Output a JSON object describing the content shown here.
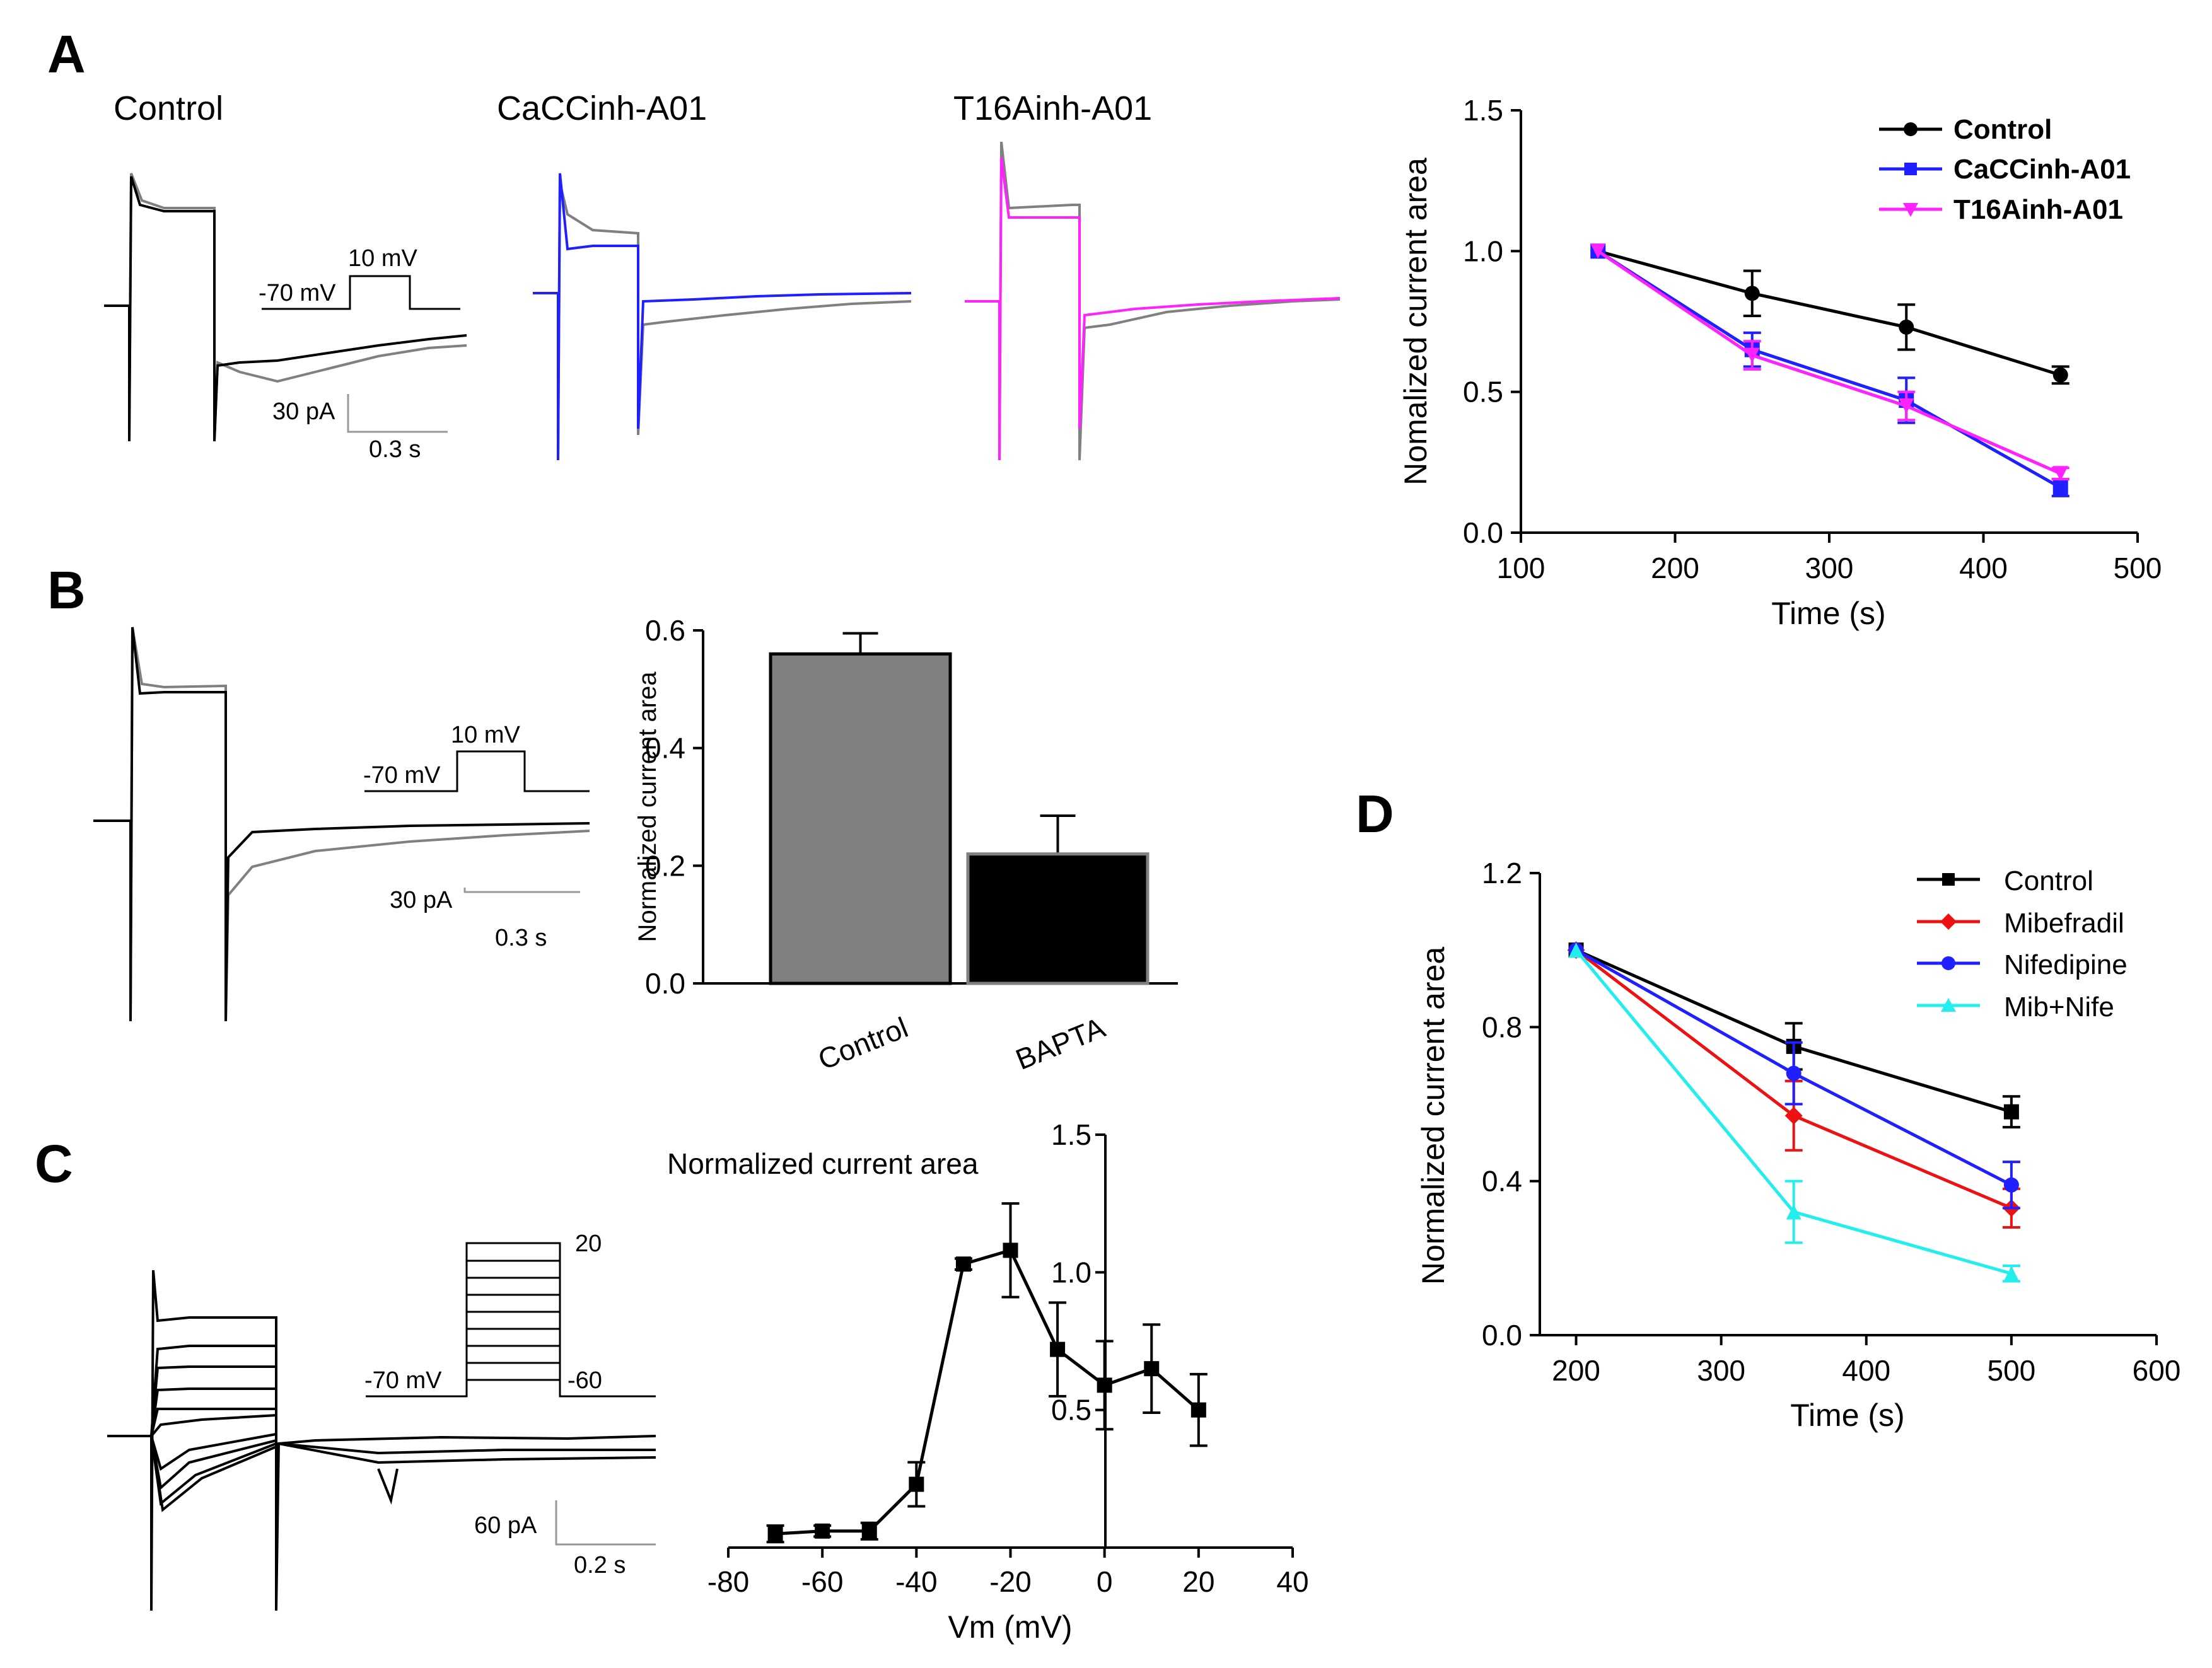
{
  "panel_letters": {
    "a": "A",
    "b": "B",
    "c": "C",
    "d": "D"
  },
  "panel_a": {
    "trace_titles": {
      "control": "Control",
      "cacc": "CaCCinh-A01",
      "t16a": "T16Ainh-A01"
    },
    "protocol": {
      "hold": "-70 mV",
      "step": "10 mV"
    },
    "scale": {
      "current": "30 pA",
      "time": "0.3 s"
    }
  },
  "panel_b": {
    "protocol": {
      "hold": "-70 mV",
      "step": "10 mV"
    },
    "scale": {
      "current": "30 pA",
      "time": "0.3 s"
    }
  },
  "panel_c": {
    "protocol": {
      "hold": "-70 mV",
      "top": "20",
      "bottom": "-60"
    },
    "scale": {
      "current": "60 pA",
      "time": "0.2 s"
    }
  },
  "colors": {
    "control": "#000000",
    "gray": "#808080",
    "blue": "#1f1fff",
    "magenta": "#ff22ff",
    "red": "#ee1111",
    "cyan": "#22eeee",
    "bar_control": "#808080",
    "bar_bapta": "#000000"
  },
  "chart_data": [
    {
      "id": "A-line",
      "type": "line",
      "ylabel": "Nomalized current area",
      "xlabel": "Time (s)",
      "xlim": [
        100,
        500
      ],
      "ylim": [
        0.0,
        1.5
      ],
      "xticks": [
        "100",
        "200",
        "300",
        "400",
        "500"
      ],
      "yticks": [
        "0.0",
        "0.5",
        "1.0",
        "1.5"
      ],
      "x": [
        150,
        250,
        350,
        450
      ],
      "legend_position": "top-right",
      "series": [
        {
          "name": "Control",
          "values": [
            1.0,
            0.85,
            0.73,
            0.56
          ],
          "errors": [
            0.0,
            0.08,
            0.08,
            0.03
          ]
        },
        {
          "name": "CaCCinh-A01",
          "values": [
            1.0,
            0.65,
            0.47,
            0.16
          ],
          "errors": [
            0.0,
            0.06,
            0.08,
            0.03
          ]
        },
        {
          "name": "T16Ainh-A01",
          "values": [
            1.0,
            0.63,
            0.45,
            0.21
          ],
          "errors": [
            0.0,
            0.05,
            0.05,
            0.02
          ]
        }
      ]
    },
    {
      "id": "B-bar",
      "type": "bar",
      "ylabel": "Normalized current area",
      "ylim": [
        0.0,
        0.6
      ],
      "yticks": [
        "0.0",
        "0.2",
        "0.4",
        "0.6"
      ],
      "categories": [
        "Control",
        "BAPTA"
      ],
      "values": [
        0.56,
        0.22
      ],
      "errors": [
        0.035,
        0.065
      ]
    },
    {
      "id": "C-iv",
      "type": "line",
      "title": "Normalized current area",
      "xlabel": "Vm (mV)",
      "xlim": [
        -80,
        40
      ],
      "ylim": [
        0.0,
        1.5
      ],
      "xticks": [
        "-80",
        "-60",
        "-40",
        "-20",
        "0",
        "20",
        "40"
      ],
      "yticks": [
        "0.5",
        "1.0",
        "1.5"
      ],
      "x": [
        -70,
        -60,
        -50,
        -40,
        -30,
        -20,
        -10,
        0,
        10,
        20
      ],
      "values": [
        0.05,
        0.06,
        0.06,
        0.23,
        1.03,
        1.08,
        0.72,
        0.59,
        0.65,
        0.5
      ],
      "errors": [
        0.03,
        0.02,
        0.03,
        0.08,
        0.02,
        0.17,
        0.17,
        0.16,
        0.16,
        0.13
      ]
    },
    {
      "id": "D-line",
      "type": "line",
      "ylabel": "Normalized current area",
      "xlabel": "Time (s)",
      "xlim": [
        175,
        600
      ],
      "ylim": [
        0.0,
        1.2
      ],
      "xticks": [
        "200",
        "300",
        "400",
        "500",
        "600"
      ],
      "yticks": [
        "0.0",
        "0.4",
        "0.8",
        "1.2"
      ],
      "x": [
        200,
        350,
        500
      ],
      "legend_position": "top-right",
      "series": [
        {
          "name": "Control",
          "values": [
            1.0,
            0.75,
            0.58
          ],
          "errors": [
            0.0,
            0.06,
            0.04
          ]
        },
        {
          "name": "Mibefradil",
          "values": [
            1.0,
            0.57,
            0.33
          ],
          "errors": [
            0.0,
            0.09,
            0.05
          ]
        },
        {
          "name": "Nifedipine",
          "values": [
            1.0,
            0.68,
            0.39
          ],
          "errors": [
            0.0,
            0.08,
            0.06
          ]
        },
        {
          "name": "Mib+Nife",
          "values": [
            1.0,
            0.32,
            0.16
          ],
          "errors": [
            0.0,
            0.08,
            0.02
          ]
        }
      ]
    }
  ]
}
